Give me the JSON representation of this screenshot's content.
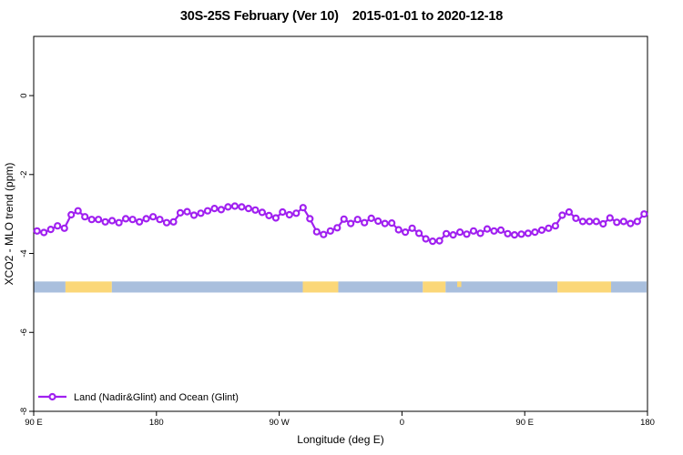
{
  "title": {
    "region_month": "30S-25S February (Ver 10)",
    "date_range": "2015-01-01 to 2020-12-18"
  },
  "chart_data": {
    "type": "line",
    "title": "30S-25S February (Ver 10)  2015-01-01 to 2020-12-18",
    "xlabel": "Longitude (deg E)",
    "ylabel": "XCO2 - MLO trend (ppm)",
    "xlim_deg": [
      90,
      540
    ],
    "ylim": [
      -8,
      1.5
    ],
    "grid": false,
    "x_ticks": [
      {
        "deg": 90,
        "label": "90 E"
      },
      {
        "deg": 180,
        "label": "180"
      },
      {
        "deg": 270,
        "label": "90 W"
      },
      {
        "deg": 360,
        "label": "0"
      },
      {
        "deg": 450,
        "label": "90 E"
      },
      {
        "deg": 540,
        "label": "180"
      }
    ],
    "y_ticks": [
      {
        "value": 0,
        "label": "0"
      },
      {
        "value": -2,
        "label": "-2"
      },
      {
        "value": -4,
        "label": "-4"
      },
      {
        "value": -6,
        "label": "-6"
      },
      {
        "value": -8,
        "label": "-8"
      }
    ],
    "line_color": "#A020F0",
    "marker": {
      "shape": "open-circle",
      "fill": "#ffffff",
      "radius": 3,
      "stroke_width": 2.2
    },
    "series": [
      {
        "name": "Land (Nadir&Glint) and Ocean (Glint)",
        "x_deg": [
          92.5,
          97.5,
          102.5,
          107.5,
          112.5,
          117.5,
          122.5,
          127.5,
          132.5,
          137.5,
          142.5,
          147.5,
          152.5,
          157.5,
          162.5,
          167.5,
          172.5,
          177.5,
          182.5,
          187.5,
          192.5,
          197.5,
          202.5,
          207.5,
          212.5,
          217.5,
          222.5,
          227.5,
          232.5,
          237.5,
          242.5,
          247.5,
          252.5,
          257.5,
          262.5,
          267.5,
          272.5,
          277.5,
          282.5,
          287.5,
          292.5,
          297.5,
          302.5,
          307.5,
          312.5,
          317.5,
          322.5,
          327.5,
          332.5,
          337.5,
          342.5,
          347.5,
          352.5,
          357.5,
          362.5,
          367.5,
          372.5,
          377.5,
          382.5,
          387.5,
          392.5,
          397.5,
          402.5,
          407.5,
          412.5,
          417.5,
          422.5,
          427.5,
          432.5,
          437.5,
          442.5,
          447.5,
          452.5,
          457.5,
          462.5,
          467.5,
          472.5,
          477.5,
          482.5,
          487.5,
          492.5,
          497.5,
          502.5,
          507.5,
          512.5,
          517.5,
          522.5,
          527.5,
          532.5,
          537.5
        ],
        "values": [
          -3.43,
          -3.47,
          -3.39,
          -3.3,
          -3.36,
          -3.02,
          -2.92,
          -3.07,
          -3.14,
          -3.14,
          -3.2,
          -3.17,
          -3.22,
          -3.12,
          -3.14,
          -3.2,
          -3.12,
          -3.07,
          -3.14,
          -3.22,
          -3.2,
          -2.97,
          -2.94,
          -3.03,
          -2.98,
          -2.92,
          -2.86,
          -2.89,
          -2.82,
          -2.8,
          -2.82,
          -2.86,
          -2.9,
          -2.96,
          -3.04,
          -3.1,
          -2.95,
          -3.02,
          -2.98,
          -2.84,
          -3.12,
          -3.45,
          -3.52,
          -3.43,
          -3.35,
          -3.13,
          -3.24,
          -3.14,
          -3.22,
          -3.11,
          -3.18,
          -3.24,
          -3.23,
          -3.4,
          -3.46,
          -3.36,
          -3.49,
          -3.63,
          -3.69,
          -3.68,
          -3.5,
          -3.53,
          -3.46,
          -3.51,
          -3.43,
          -3.49,
          -3.38,
          -3.43,
          -3.41,
          -3.5,
          -3.53,
          -3.51,
          -3.49,
          -3.46,
          -3.41,
          -3.36,
          -3.3,
          -3.03,
          -2.95,
          -3.11,
          -3.19,
          -3.19,
          -3.19,
          -3.25,
          -3.1,
          -3.21,
          -3.19,
          -3.24,
          -3.19,
          -3.0
        ]
      }
    ],
    "surface_band": {
      "y_center": -4.85,
      "half_height": 0.14,
      "colors": {
        "blue": "#A9BFDD",
        "yellow": "#FBD778"
      },
      "segments": [
        {
          "from_deg": 90.0,
          "to_deg": 113.3,
          "color": "blue"
        },
        {
          "from_deg": 113.3,
          "to_deg": 147.3,
          "color": "yellow"
        },
        {
          "from_deg": 147.3,
          "to_deg": 287.3,
          "color": "blue"
        },
        {
          "from_deg": 287.3,
          "to_deg": 313.3,
          "color": "yellow"
        },
        {
          "from_deg": 313.3,
          "to_deg": 375.3,
          "color": "blue"
        },
        {
          "from_deg": 375.3,
          "to_deg": 392.0,
          "color": "yellow"
        },
        {
          "from_deg": 392.0,
          "to_deg": 474.0,
          "color": "blue"
        },
        {
          "from_deg": 400.5,
          "to_deg": 403.5,
          "color": "yellow",
          "extent": "top-half"
        },
        {
          "from_deg": 474.0,
          "to_deg": 513.3,
          "color": "yellow"
        },
        {
          "from_deg": 513.3,
          "to_deg": 539.3,
          "color": "blue"
        }
      ]
    },
    "legend": {
      "label": "Land (Nadir&Glint) and Ocean (Glint)",
      "position": "bottom-left"
    }
  }
}
